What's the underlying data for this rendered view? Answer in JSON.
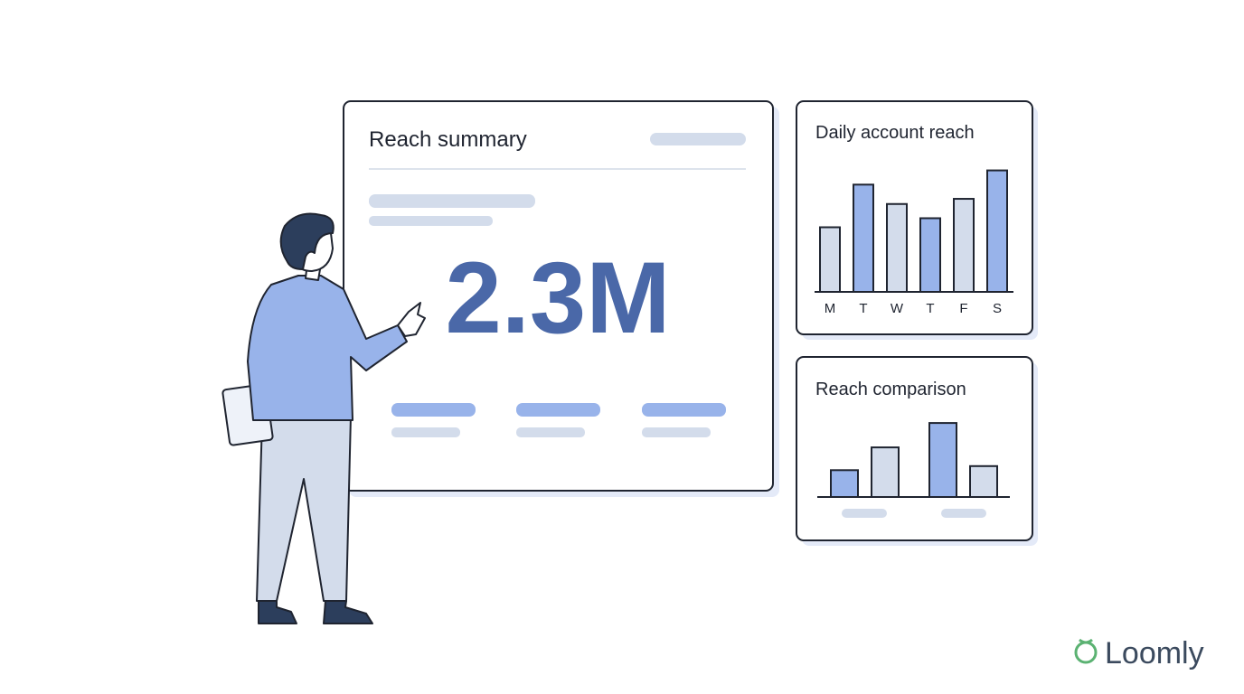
{
  "main_card": {
    "title": "Reach summary",
    "metric": "2.3M"
  },
  "daily_chart": {
    "type": "bar",
    "title": "Daily account reach",
    "categories": [
      "M",
      "T",
      "W",
      "T",
      "F",
      "S"
    ],
    "values": [
      50,
      83,
      68,
      57,
      72,
      94
    ],
    "colors": [
      "#d3dceb",
      "#98b3ea",
      "#d3dceb",
      "#98b3ea",
      "#d3dceb",
      "#98b3ea"
    ],
    "ylim": [
      0,
      100
    ]
  },
  "comparison_chart": {
    "type": "bar",
    "title": "Reach comparison",
    "values": [
      33,
      61,
      91,
      38
    ],
    "colors": [
      "#98b3ea",
      "#d3dceb",
      "#98b3ea",
      "#d3dceb"
    ],
    "ylim": [
      0,
      100
    ]
  },
  "brand": "Loomly"
}
